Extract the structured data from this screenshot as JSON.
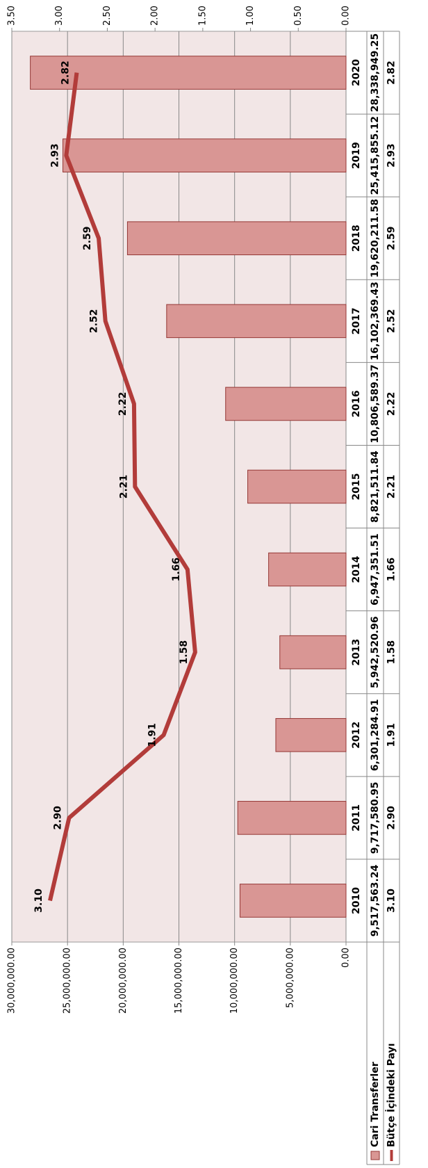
{
  "chart_data": {
    "type": "bar",
    "categories": [
      "2010",
      "2011",
      "2012",
      "2013",
      "2014",
      "2015",
      "2016",
      "2017",
      "2018",
      "2019",
      "2020"
    ],
    "series": [
      {
        "name": "Cari Transferler",
        "type": "bar",
        "color": "#d99694",
        "stroke": "#943634",
        "values": [
          9517563.24,
          9717580.95,
          6301284.91,
          5942520.96,
          6947351.51,
          8821511.84,
          10806589.37,
          16102369.43,
          19620211.58,
          25415855.12,
          28338949.25
        ],
        "value_labels": [
          "9,517,563.24",
          "9,717,580.95",
          "6,301,284.91",
          "5,942,520.96",
          "6,947,351.51",
          "8,821,511.84",
          "10,806,589.37",
          "16,102,369.43",
          "19,620,211.58",
          "25,415,855.12",
          "28,338,949.25"
        ]
      },
      {
        "name": "Bütçe İçindeki Payı",
        "type": "line",
        "axis": "y2",
        "color": "#b23c3a",
        "values": [
          3.1,
          2.9,
          1.91,
          1.58,
          1.66,
          2.21,
          2.22,
          2.52,
          2.59,
          2.93,
          2.82
        ],
        "value_labels": [
          "3.10",
          "2.90",
          "1.91",
          "1.58",
          "1.66",
          "2.21",
          "2.22",
          "2.52",
          "2.59",
          "2.93",
          "2.82"
        ]
      }
    ],
    "ylim": [
      0,
      30000000
    ],
    "yticks": [
      {
        "value": 0,
        "label": "0.00"
      },
      {
        "value": 5000000,
        "label": "5,000,000.00"
      },
      {
        "value": 10000000,
        "label": "10,000,000.00"
      },
      {
        "value": 15000000,
        "label": "15,000,000.00"
      },
      {
        "value": 20000000,
        "label": "20,000,000.00"
      },
      {
        "value": 25000000,
        "label": "25,000,000.00"
      },
      {
        "value": 30000000,
        "label": "30,000,000.00"
      }
    ],
    "y2lim": [
      0,
      3.5
    ],
    "y2ticks": [
      {
        "value": 0,
        "label": "0.00"
      },
      {
        "value": 0.5,
        "label": "0.50"
      },
      {
        "value": 1,
        "label": "1.00"
      },
      {
        "value": 1.5,
        "label": "1.50"
      },
      {
        "value": 2,
        "label": "2.00"
      },
      {
        "value": 2.5,
        "label": "2.50"
      },
      {
        "value": 3,
        "label": "3.00"
      },
      {
        "value": 3.5,
        "label": "3.50"
      }
    ],
    "grid": true,
    "data_table": true
  }
}
